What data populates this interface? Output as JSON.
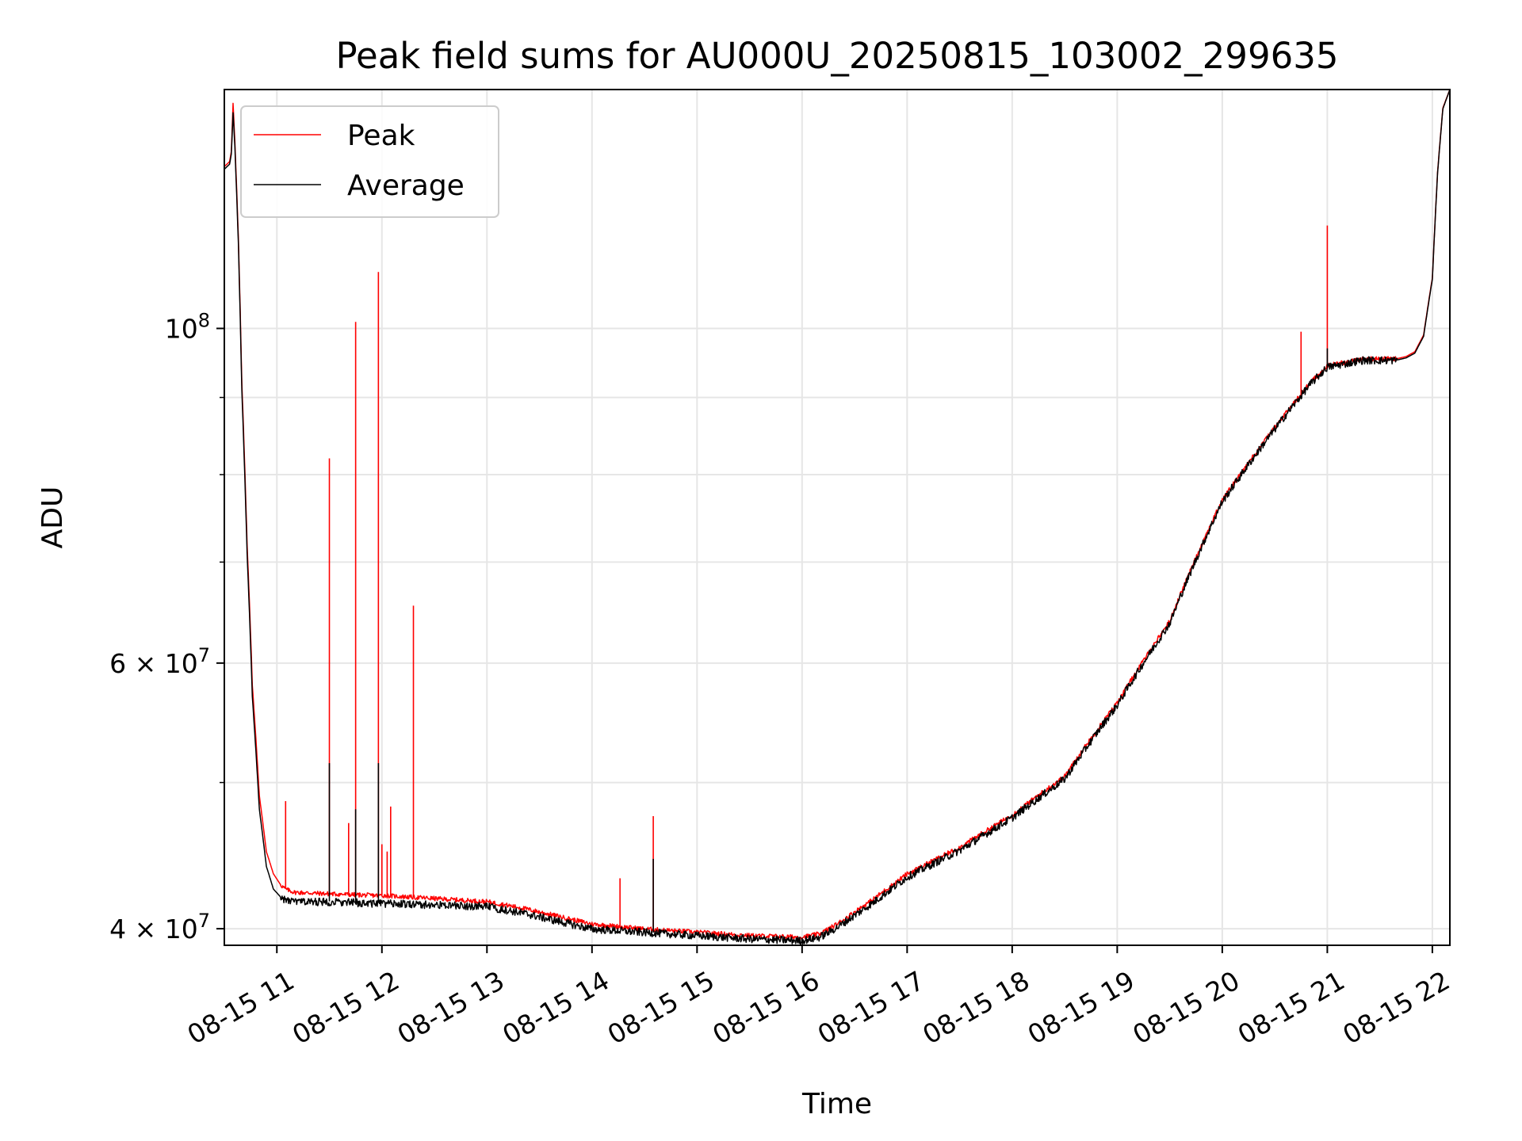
{
  "chart_data": {
    "type": "line",
    "title": "Peak field sums for AU000U_20250815_103002_299635",
    "xlabel": "Time",
    "ylabel": "ADU",
    "x_axis": {
      "kind": "datetime",
      "xlim": [
        "2025-08-15 10:30",
        "2025-08-15 22:10"
      ],
      "ticks": [
        {
          "value": "2025-08-15 11:00",
          "label": "08-15 11"
        },
        {
          "value": "2025-08-15 12:00",
          "label": "08-15 12"
        },
        {
          "value": "2025-08-15 13:00",
          "label": "08-15 13"
        },
        {
          "value": "2025-08-15 14:00",
          "label": "08-15 14"
        },
        {
          "value": "2025-08-15 15:00",
          "label": "08-15 15"
        },
        {
          "value": "2025-08-15 16:00",
          "label": "08-15 16"
        },
        {
          "value": "2025-08-15 17:00",
          "label": "08-15 17"
        },
        {
          "value": "2025-08-15 18:00",
          "label": "08-15 18"
        },
        {
          "value": "2025-08-15 19:00",
          "label": "08-15 19"
        },
        {
          "value": "2025-08-15 20:00",
          "label": "08-15 20"
        },
        {
          "value": "2025-08-15 21:00",
          "label": "08-15 21"
        },
        {
          "value": "2025-08-15 22:00",
          "label": "08-15 22"
        }
      ]
    },
    "y_axis": {
      "scale": "log",
      "ylim": [
        39000000,
        144000000
      ],
      "major_ticks": [
        {
          "value": 40000000,
          "label": "4 × 10",
          "exp": "7"
        },
        {
          "value": 60000000,
          "label": "6 × 10",
          "exp": "7"
        },
        {
          "value": 100000000,
          "label": "10",
          "exp": "8"
        }
      ],
      "minor_ticks": [
        50000000,
        70000000,
        80000000,
        90000000
      ]
    },
    "grid": true,
    "legend": {
      "position": "upper-left"
    },
    "series": [
      {
        "name": "Peak",
        "color": "#ff0000",
        "x": [
          "2025-08-15 10:30",
          "2025-08-15 10:33",
          "2025-08-15 10:34",
          "2025-08-15 10:35",
          "2025-08-15 10:36",
          "2025-08-15 10:38",
          "2025-08-15 10:40",
          "2025-08-15 10:43",
          "2025-08-15 10:46",
          "2025-08-15 10:50",
          "2025-08-15 10:54",
          "2025-08-15 10:58",
          "2025-08-15 11:02",
          "2025-08-15 11:05",
          "2025-08-15 11:10",
          "2025-08-15 11:30",
          "2025-08-15 11:55",
          "2025-08-15 12:00",
          "2025-08-15 12:30",
          "2025-08-15 13:00",
          "2025-08-15 13:20",
          "2025-08-15 13:40",
          "2025-08-15 14:00",
          "2025-08-15 14:30",
          "2025-08-15 15:00",
          "2025-08-15 15:30",
          "2025-08-15 16:00",
          "2025-08-15 16:10",
          "2025-08-15 16:20",
          "2025-08-15 16:40",
          "2025-08-15 17:00",
          "2025-08-15 17:30",
          "2025-08-15 18:00",
          "2025-08-15 18:30",
          "2025-08-15 19:00",
          "2025-08-15 19:30",
          "2025-08-15 20:00",
          "2025-08-15 20:30",
          "2025-08-15 20:50",
          "2025-08-15 21:00",
          "2025-08-15 21:20",
          "2025-08-15 21:40",
          "2025-08-15 21:45",
          "2025-08-15 21:50",
          "2025-08-15 21:55",
          "2025-08-15 22:00",
          "2025-08-15 22:03",
          "2025-08-15 22:06",
          "2025-08-15 22:10"
        ],
        "values": [
          128000000,
          129000000,
          131000000,
          141000000,
          133000000,
          115000000,
          92000000,
          72000000,
          58000000,
          49000000,
          45000000,
          43500000,
          42800000,
          42500000,
          42300000,
          42200000,
          42100000,
          42100000,
          41900000,
          41700000,
          41300000,
          40800000,
          40300000,
          40000000,
          39800000,
          39600000,
          39500000,
          39700000,
          40300000,
          41800000,
          43500000,
          45300000,
          47600000,
          50500000,
          56500000,
          64000000,
          77000000,
          86000000,
          92000000,
          94500000,
          95500000,
          95500000,
          95800000,
          96500000,
          99000000,
          108000000,
          127000000,
          140000000,
          144000000
        ],
        "spikes": [
          {
            "x": "2025-08-15 11:05",
            "value": 48600000
          },
          {
            "x": "2025-08-15 11:30",
            "value": 82000000
          },
          {
            "x": "2025-08-15 11:41",
            "value": 47000000
          },
          {
            "x": "2025-08-15 11:45",
            "value": 101000000
          },
          {
            "x": "2025-08-15 11:58",
            "value": 109000000
          },
          {
            "x": "2025-08-15 12:00",
            "value": 45500000
          },
          {
            "x": "2025-08-15 12:03",
            "value": 45000000
          },
          {
            "x": "2025-08-15 12:05",
            "value": 48200000
          },
          {
            "x": "2025-08-15 12:18",
            "value": 65500000
          },
          {
            "x": "2025-08-15 14:16",
            "value": 43200000
          },
          {
            "x": "2025-08-15 14:35",
            "value": 47500000
          },
          {
            "x": "2025-08-15 20:45",
            "value": 99500000
          },
          {
            "x": "2025-08-15 21:00",
            "value": 117000000
          }
        ]
      },
      {
        "name": "Average",
        "color": "#000000",
        "x": [
          "2025-08-15 10:30",
          "2025-08-15 10:33",
          "2025-08-15 10:34",
          "2025-08-15 10:35",
          "2025-08-15 10:36",
          "2025-08-15 10:38",
          "2025-08-15 10:40",
          "2025-08-15 10:43",
          "2025-08-15 10:46",
          "2025-08-15 10:50",
          "2025-08-15 10:54",
          "2025-08-15 10:58",
          "2025-08-15 11:02",
          "2025-08-15 11:05",
          "2025-08-15 11:10",
          "2025-08-15 11:30",
          "2025-08-15 11:55",
          "2025-08-15 12:00",
          "2025-08-15 12:30",
          "2025-08-15 13:00",
          "2025-08-15 13:20",
          "2025-08-15 13:40",
          "2025-08-15 14:00",
          "2025-08-15 14:30",
          "2025-08-15 15:00",
          "2025-08-15 15:30",
          "2025-08-15 16:00",
          "2025-08-15 16:10",
          "2025-08-15 16:20",
          "2025-08-15 16:40",
          "2025-08-15 17:00",
          "2025-08-15 17:30",
          "2025-08-15 18:00",
          "2025-08-15 18:30",
          "2025-08-15 19:00",
          "2025-08-15 19:30",
          "2025-08-15 20:00",
          "2025-08-15 20:30",
          "2025-08-15 20:50",
          "2025-08-15 21:00",
          "2025-08-15 21:20",
          "2025-08-15 21:40",
          "2025-08-15 21:45",
          "2025-08-15 21:50",
          "2025-08-15 21:55",
          "2025-08-15 22:00",
          "2025-08-15 22:03",
          "2025-08-15 22:06",
          "2025-08-15 22:10"
        ],
        "values": [
          127500000,
          128500000,
          130500000,
          139000000,
          132000000,
          114000000,
          91000000,
          71000000,
          57000000,
          48000000,
          44000000,
          42500000,
          42000000,
          41800000,
          41700000,
          41700000,
          41600000,
          41600000,
          41500000,
          41400000,
          41000000,
          40500000,
          40000000,
          39800000,
          39600000,
          39400000,
          39300000,
          39500000,
          40100000,
          41600000,
          43300000,
          45100000,
          47400000,
          50300000,
          56300000,
          63800000,
          76800000,
          85800000,
          91800000,
          94300000,
          95300000,
          95300000,
          95600000,
          96300000,
          98800000,
          107800000,
          126800000,
          139800000,
          144000000
        ],
        "spikes": [
          {
            "x": "2025-08-15 11:30",
            "value": 51500000
          },
          {
            "x": "2025-08-15 11:45",
            "value": 48000000
          },
          {
            "x": "2025-08-15 11:58",
            "value": 51500000
          },
          {
            "x": "2025-08-15 14:35",
            "value": 44500000
          },
          {
            "x": "2025-08-15 21:00",
            "value": 97000000
          }
        ]
      }
    ]
  }
}
